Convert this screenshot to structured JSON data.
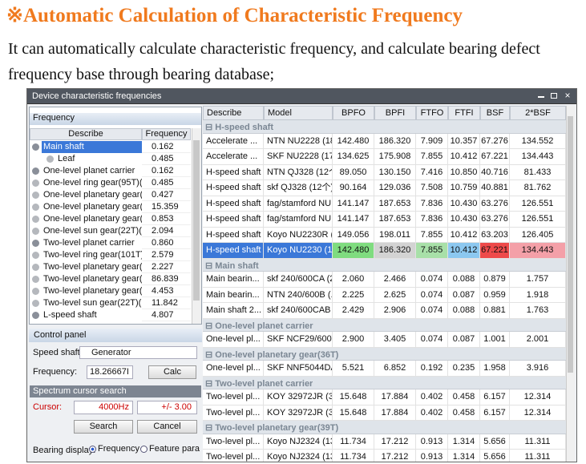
{
  "header": {
    "title": "※Automatic Calculation of Characteristic Frequency",
    "text": "It can automatically calculate characteristic frequency, and calculate bearing defect frequency base through bearing database;"
  },
  "window": {
    "title": "Device characteristic frequencies",
    "frequency_panel": {
      "title": "Frequency",
      "columns": [
        "Describe",
        "Frequency"
      ],
      "rows": [
        [
          "Main shaft",
          "0.162"
        ],
        [
          "Leaf",
          "0.485"
        ],
        [
          "One-level planet carrier",
          "0.162"
        ],
        [
          "One-level ring gear(95T)(...",
          "0.485"
        ],
        [
          "One-level planetary gear(3...",
          "0.427"
        ],
        [
          "One-level planetary gear(3...",
          "15.359"
        ],
        [
          "One-level planetary gear(3...",
          "0.853"
        ],
        [
          "One-level sun gear(22T)(...",
          "2.094"
        ],
        [
          "Two-level planet carrier",
          "0.860"
        ],
        [
          "Two-level ring gear(101T)...",
          "2.579"
        ],
        [
          "Two-level planetary gear(3...",
          "2.227"
        ],
        [
          "Two-level planetary gear(3...",
          "86.839"
        ],
        [
          "Two-level planetary gear(3...",
          "4.453"
        ],
        [
          "Two-level sun gear(22T)(...",
          "11.842"
        ],
        [
          "L-speed shaft",
          "4.807"
        ]
      ]
    },
    "control_panel": {
      "title": "Control panel",
      "speed_shaft_label": "Speed shaft:",
      "speed_shaft": "Generator",
      "frequency_label": "Frequency:",
      "frequency": "18.26667I",
      "calc": "Calc",
      "cursor_search_title": "Spectrum cursor search",
      "cursor_label": "Cursor:",
      "cursor": "4000Hz",
      "tolerance": "+/- 3.00",
      "search": "Search",
      "cancel": "Cancel",
      "bearing_display_label": "Bearing display:",
      "options": [
        "Frequency",
        "Feature para"
      ]
    },
    "bearing_table": {
      "columns": [
        "Describe",
        "Model",
        "BPFO",
        "BPFI",
        "FTFO",
        "FTFI",
        "BSF",
        "2*BSF"
      ],
      "groups": [
        {
          "name": "H-speed shaft",
          "rows": [
            [
              "Accelerate ...",
              "NTN NU2228 (18...",
              "142.480",
              "186.320",
              "7.909",
              "10.357",
              "67.276",
              "134.552"
            ],
            [
              "Accelerate ...",
              "SKF NU2228 (17...",
              "134.625",
              "175.908",
              "7.855",
              "10.412",
              "67.221",
              "134.443"
            ],
            [
              "H-speed shaft",
              "NTN QJ328 (12个)",
              "89.050",
              "130.150",
              "7.416",
              "10.850",
              "40.716",
              "81.433"
            ],
            [
              "H-speed shaft",
              "skf QJ328 (12个)",
              "90.164",
              "129.036",
              "7.508",
              "10.759",
              "40.881",
              "81.762"
            ],
            [
              "H-speed shaft",
              "fag/stamford NU...",
              "141.147",
              "187.653",
              "7.836",
              "10.430",
              "63.276",
              "126.551"
            ],
            [
              "H-speed shaft",
              "fag/stamford NU...",
              "141.147",
              "187.653",
              "7.836",
              "10.430",
              "63.276",
              "126.551"
            ],
            [
              "H-speed shaft",
              "Koyo NU2230R (...",
              "149.056",
              "198.011",
              "7.855",
              "10.412",
              "63.203",
              "126.405"
            ],
            [
              "H-speed shaft",
              "Koyo NU2230 (11...",
              "142.480",
              "186.320",
              "7.855",
              "10.412",
              "67.221",
              "134.443"
            ]
          ]
        },
        {
          "name": "Main shaft",
          "rows": [
            [
              "Main bearin...",
              "skf 240/600CA (2...",
              "2.060",
              "2.466",
              "0.074",
              "0.088",
              "0.879",
              "1.757"
            ],
            [
              "Main bearin...",
              "NTN 240/600B (...",
              "2.225",
              "2.625",
              "0.074",
              "0.087",
              "0.959",
              "1.918"
            ],
            [
              "Main shaft 2...",
              "skf 240/600CAB ...",
              "2.429",
              "2.906",
              "0.074",
              "0.088",
              "0.881",
              "1.763"
            ]
          ]
        },
        {
          "name": "One-level planet carrier",
          "rows": [
            [
              "One-level pl...",
              "SKF NCF29/600V...",
              "2.900",
              "3.405",
              "0.074",
              "0.087",
              "1.001",
              "2.001"
            ]
          ]
        },
        {
          "name": "One-level planetary gear(36T)",
          "rows": [
            [
              "One-level pl...",
              "SKF NNF5044DA ...",
              "5.521",
              "6.852",
              "0.192",
              "0.235",
              "1.958",
              "3.916"
            ]
          ]
        },
        {
          "name": "Two-level planet carrier",
          "rows": [
            [
              "Two-level pl...",
              "KOY 32972JR (3...",
              "15.648",
              "17.884",
              "0.402",
              "0.458",
              "6.157",
              "12.314"
            ],
            [
              "Two-level pl...",
              "KOY 32972JR (3...",
              "15.648",
              "17.884",
              "0.402",
              "0.458",
              "6.157",
              "12.314"
            ]
          ]
        },
        {
          "name": "Two-level planetary gear(39T)",
          "rows": [
            [
              "Two-level pl...",
              "Koyo NJ2324 (13...",
              "11.734",
              "17.212",
              "0.913",
              "1.314",
              "5.656",
              "11.311"
            ],
            [
              "Two-level pl...",
              "Koyo NJ2324 (13...",
              "11.734",
              "17.212",
              "0.913",
              "1.314",
              "5.656",
              "11.311"
            ]
          ]
        }
      ]
    }
  }
}
